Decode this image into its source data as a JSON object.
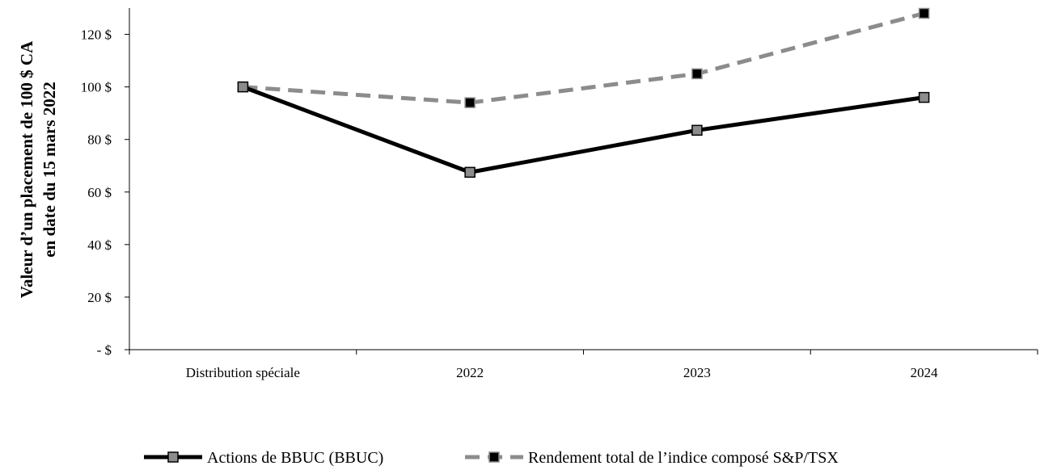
{
  "chart_data": {
    "type": "line",
    "categories": [
      "Distribution spéciale",
      "2022",
      "2023",
      "2024"
    ],
    "series": [
      {
        "name": "Actions de BBUC (BBUC)",
        "values": [
          100,
          67.5,
          83.5,
          96
        ],
        "color": "#000000",
        "style": "solid",
        "marker": "square",
        "marker_color": "#8c8c8c"
      },
      {
        "name": "Rendement total de l’indice composé S&P/TSX",
        "values": [
          100,
          94,
          105,
          128
        ],
        "color": "#8c8c8c",
        "style": "dashed",
        "marker": "square",
        "marker_color": "#000000"
      }
    ],
    "ylabel_lines": [
      "Valeur d’un placement de 100 $ CA",
      "en date du 15 mars 2022"
    ],
    "yticks": [
      {
        "value": 0,
        "label": "- $"
      },
      {
        "value": 20,
        "label": "20 $"
      },
      {
        "value": 40,
        "label": "40 $"
      },
      {
        "value": 60,
        "label": "60 $"
      },
      {
        "value": 80,
        "label": "80 $"
      },
      {
        "value": 100,
        "label": "100 $"
      },
      {
        "value": 120,
        "label": "120 $"
      }
    ],
    "ylim": [
      0,
      130
    ],
    "grid": false,
    "legend_position": "bottom"
  }
}
